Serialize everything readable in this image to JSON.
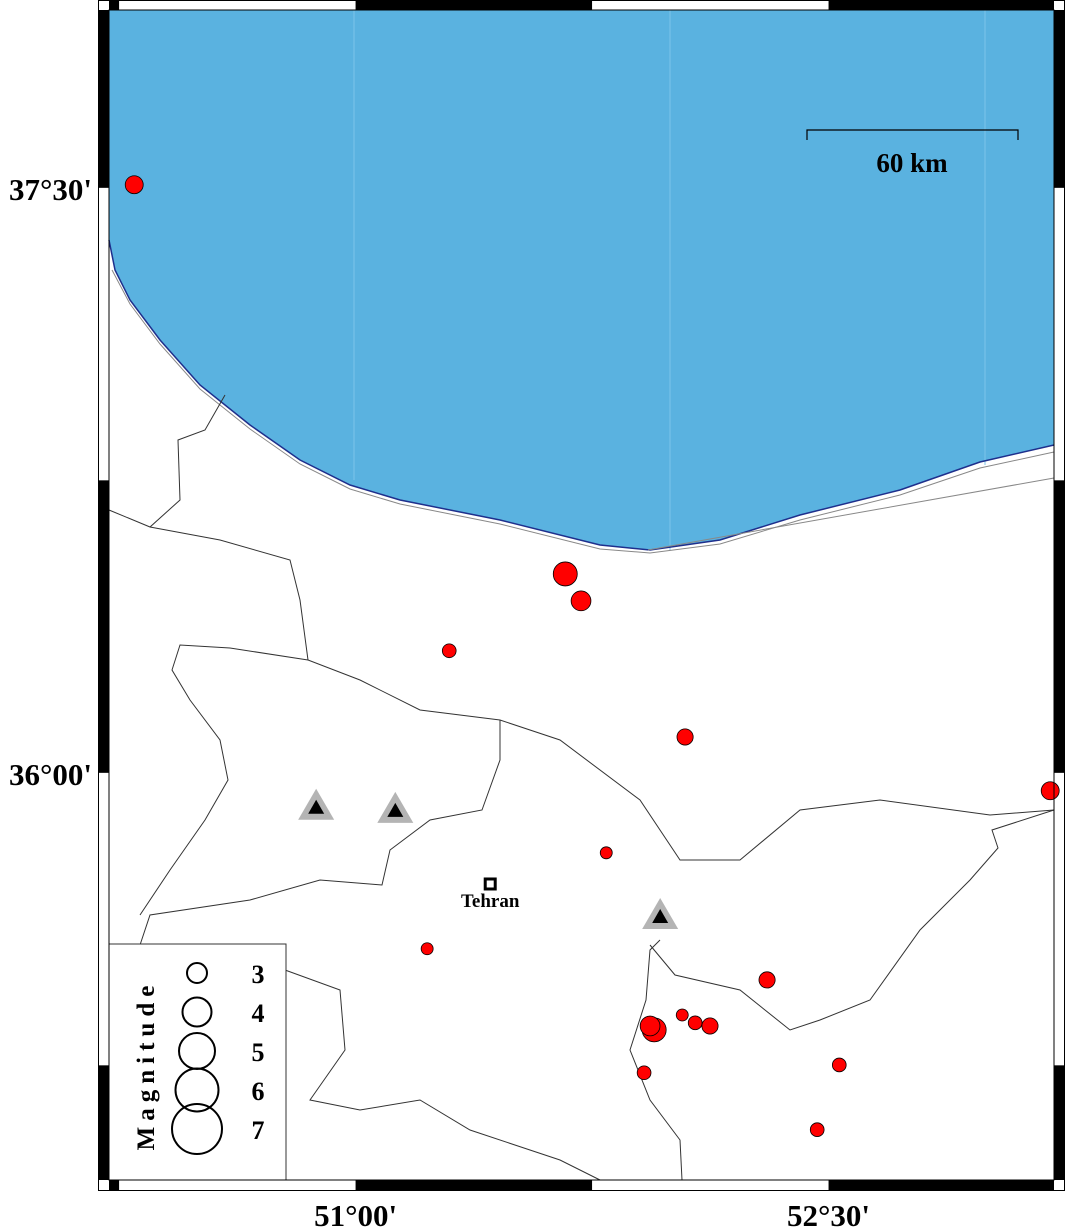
{
  "map": {
    "lon_range": [
      50.218,
      53.215
    ],
    "lat_range": [
      34.956,
      37.956
    ],
    "frame_tick_interval_deg": 0.75,
    "colors": {
      "sea": "#5ab2e0",
      "event": "#ff0000",
      "station_outer": "#b4b4b4",
      "station_inner": "#000000",
      "coast": "#1e2f8c"
    },
    "axis_labels": {
      "lat": [
        {
          "value": 37.5,
          "text": "37°30'"
        },
        {
          "value": 36.0,
          "text": "36°00'"
        }
      ],
      "lon": [
        {
          "value": 51.0,
          "text": "51°00'"
        },
        {
          "value": 52.5,
          "text": "52°30'"
        }
      ]
    },
    "scale_bar": {
      "label": "60 km",
      "length_km": 60
    },
    "city": {
      "name": "Tehran",
      "lon": 51.427,
      "lat": 35.715
    },
    "stations": [
      {
        "lon": 50.875,
        "lat": 35.913
      },
      {
        "lon": 51.126,
        "lat": 35.905
      },
      {
        "lon": 51.966,
        "lat": 35.633
      }
    ],
    "events": [
      {
        "lon": 50.298,
        "lat": 37.508,
        "mag": 4.0
      },
      {
        "lon": 51.665,
        "lat": 36.51,
        "mag": 5.0
      },
      {
        "lon": 51.715,
        "lat": 36.441,
        "mag": 4.3
      },
      {
        "lon": 51.297,
        "lat": 36.313,
        "mag": 3.3
      },
      {
        "lon": 52.045,
        "lat": 36.092,
        "mag": 3.7
      },
      {
        "lon": 53.203,
        "lat": 35.954,
        "mag": 4.0
      },
      {
        "lon": 51.795,
        "lat": 35.795,
        "mag": 3.0
      },
      {
        "lon": 51.227,
        "lat": 35.549,
        "mag": 3.0
      },
      {
        "lon": 52.305,
        "lat": 35.469,
        "mag": 3.7
      },
      {
        "lon": 51.947,
        "lat": 35.341,
        "mag": 5.0
      },
      {
        "lon": 51.934,
        "lat": 35.351,
        "mag": 4.3
      },
      {
        "lon": 52.036,
        "lat": 35.379,
        "mag": 3.0
      },
      {
        "lon": 52.077,
        "lat": 35.359,
        "mag": 3.3
      },
      {
        "lon": 52.124,
        "lat": 35.351,
        "mag": 3.7
      },
      {
        "lon": 51.915,
        "lat": 35.231,
        "mag": 3.3
      },
      {
        "lon": 52.534,
        "lat": 35.251,
        "mag": 3.3
      },
      {
        "lon": 52.464,
        "lat": 35.085,
        "mag": 3.3
      }
    ],
    "legend": {
      "title": "Magnitude",
      "items": [
        {
          "mag": 3,
          "label": "3"
        },
        {
          "mag": 4,
          "label": "4"
        },
        {
          "mag": 5,
          "label": "5"
        },
        {
          "mag": 6,
          "label": "6"
        },
        {
          "mag": 7,
          "label": "7"
        }
      ]
    }
  }
}
